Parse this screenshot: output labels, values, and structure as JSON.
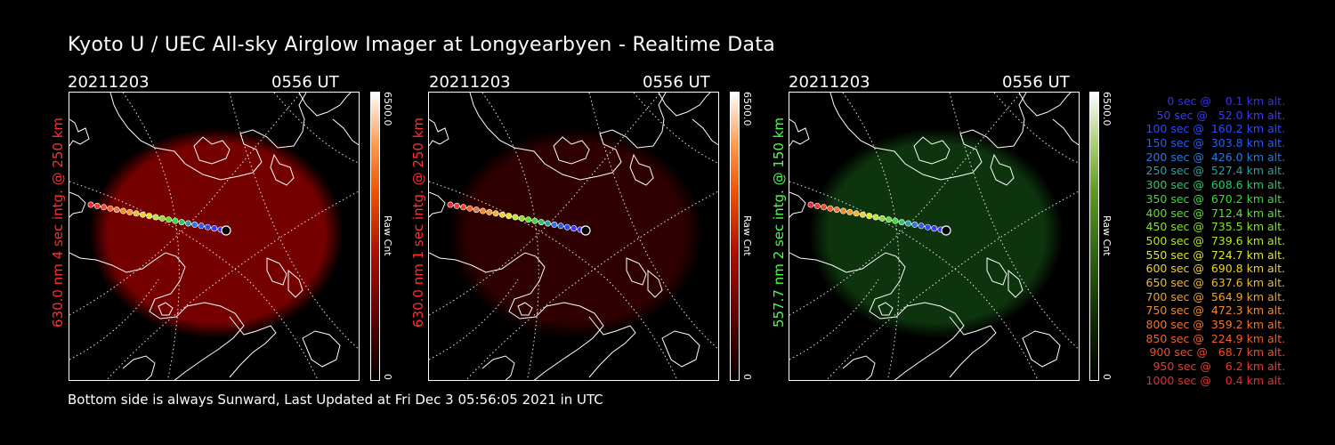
{
  "title": "Kyoto U / UEC All-sky Airglow Imager at Longyearbyen - Realtime Data",
  "footer": "Bottom side is always Sunward, Last Updated at Fri Dec  3 05:56:05 2021 in UTC",
  "panels": [
    {
      "date": "20211203",
      "time": "0556 UT",
      "label": "630.0 nm 4 sec intg. @ 250 km",
      "label_color": "#ff3030",
      "colorbar_max": "6500.0",
      "colorbar_unit": "Raw Cnt",
      "colorbar_min": "0",
      "glow_color": "#8a0000",
      "glow_opacity": 0.85
    },
    {
      "date": "20211203",
      "time": "0556 UT",
      "label": "630.0 nm 1 sec intg. @ 250 km",
      "label_color": "#ff3030",
      "colorbar_max": "6500.0",
      "colorbar_unit": "Raw Cnt",
      "colorbar_min": "0",
      "glow_color": "#3a0000",
      "glow_opacity": 0.8
    },
    {
      "date": "20211203",
      "time": "0556 UT",
      "label": "557.7 nm 2 sec intg. @ 150 km",
      "label_color": "#4cff4c",
      "colorbar_max": "6500.0",
      "colorbar_unit": "Raw Cnt",
      "colorbar_min": "0",
      "glow_color": "#0f3a0f",
      "glow_opacity": 0.9
    }
  ],
  "legend": [
    {
      "text": "0 sec @    0.1 km alt.",
      "color": "#3030ff"
    },
    {
      "text": "50 sec @   52.0 km alt.",
      "color": "#3a3aff"
    },
    {
      "text": "100 sec @  160.2 km alt.",
      "color": "#2a4cff"
    },
    {
      "text": "150 sec @  303.8 km alt.",
      "color": "#2a5cf0"
    },
    {
      "text": "200 sec @  426.0 km alt.",
      "color": "#2a78e0"
    },
    {
      "text": "250 sec @  527.4 km alt.",
      "color": "#2aa0a0"
    },
    {
      "text": "300 sec @  608.6 km alt.",
      "color": "#2ac86a"
    },
    {
      "text": "350 sec @  670.2 km alt.",
      "color": "#3adc3a"
    },
    {
      "text": "400 sec @  712.4 km alt.",
      "color": "#5ae02a"
    },
    {
      "text": "450 sec @  735.5 km alt.",
      "color": "#8ae02a"
    },
    {
      "text": "500 sec @  739.6 km alt.",
      "color": "#b8e62a"
    },
    {
      "text": "550 sec @  724.7 km alt.",
      "color": "#dfe62a"
    },
    {
      "text": "600 sec @  690.8 km alt.",
      "color": "#f2d22a"
    },
    {
      "text": "650 sec @  637.6 km alt.",
      "color": "#f2b82a"
    },
    {
      "text": "700 sec @  564.9 km alt.",
      "color": "#f2a02a"
    },
    {
      "text": "750 sec @  472.3 km alt.",
      "color": "#f28a2a"
    },
    {
      "text": "800 sec @  359.2 km alt.",
      "color": "#f2742a"
    },
    {
      "text": "850 sec @  224.9 km alt.",
      "color": "#f2602a"
    },
    {
      "text": "900 sec @   68.7 km alt.",
      "color": "#f24a2a"
    },
    {
      "text": "950 sec @    6.2 km alt.",
      "color": "#f2382a"
    },
    {
      "text": "1000 sec @    0.4 km alt.",
      "color": "#f22a2a"
    }
  ]
}
